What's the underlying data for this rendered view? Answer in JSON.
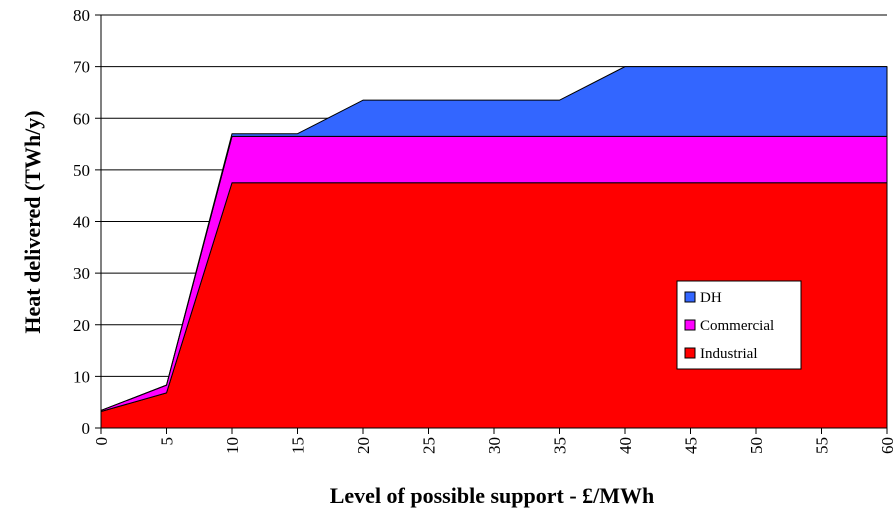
{
  "chart_data": {
    "type": "area",
    "stacked": true,
    "xlabel": "Level of possible support - £/MWh",
    "ylabel": "Heat delivered (TWh/y)",
    "x": [
      0,
      5,
      10,
      15,
      20,
      25,
      30,
      35,
      40,
      45,
      50,
      55,
      60
    ],
    "xlim": [
      0,
      60
    ],
    "ylim": [
      0,
      80
    ],
    "xticks": [
      "0",
      "5",
      "10",
      "15",
      "20",
      "25",
      "30",
      "35",
      "40",
      "45",
      "50",
      "55",
      "60"
    ],
    "yticks": [
      "0",
      "10",
      "20",
      "30",
      "40",
      "50",
      "60",
      "70",
      "80"
    ],
    "grid": "horizontal",
    "legend_position": "right",
    "series": [
      {
        "name": "Industrial",
        "color": "#ff0000",
        "values": [
          3.2,
          6.8,
          47.5,
          47.5,
          47.5,
          47.5,
          47.5,
          47.5,
          47.5,
          47.5,
          47.5,
          47.5,
          47.5
        ]
      },
      {
        "name": "Commercial",
        "color": "#ff00ff",
        "values": [
          0.2,
          1.5,
          9.0,
          9.0,
          9.0,
          9.0,
          9.0,
          9.0,
          9.0,
          9.0,
          9.0,
          9.0,
          9.0
        ]
      },
      {
        "name": "DH",
        "color": "#3366ff",
        "values": [
          0.0,
          0.0,
          0.5,
          0.5,
          7.0,
          7.0,
          7.0,
          7.0,
          13.5,
          13.5,
          13.5,
          13.5,
          13.5
        ]
      }
    ],
    "legend_order": [
      "DH",
      "Commercial",
      "Industrial"
    ]
  }
}
